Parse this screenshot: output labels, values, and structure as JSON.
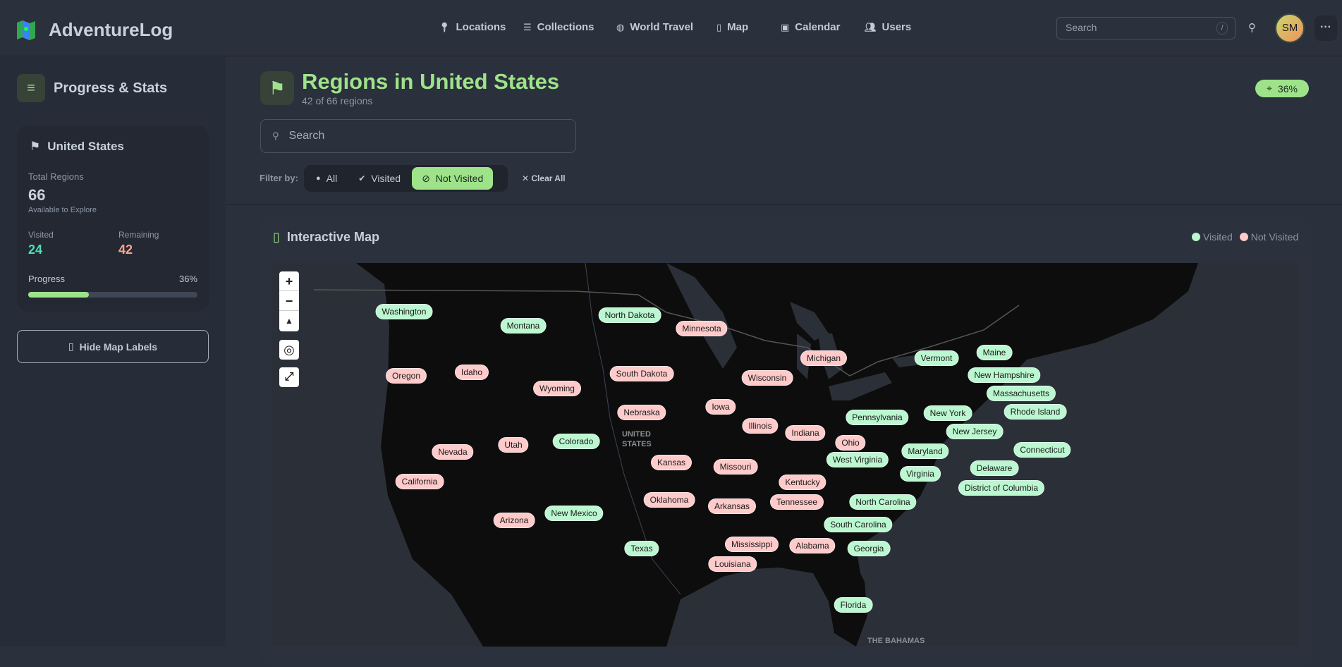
{
  "app": {
    "name": "AdventureLog"
  },
  "nav": [
    {
      "label": "Locations",
      "icon": "map-pin-icon"
    },
    {
      "label": "Collections",
      "icon": "list-icon"
    },
    {
      "label": "World Travel",
      "icon": "globe-icon"
    },
    {
      "label": "Map",
      "icon": "map-icon"
    },
    {
      "label": "Calendar",
      "icon": "calendar-icon"
    },
    {
      "label": "Users",
      "icon": "users-icon"
    }
  ],
  "header": {
    "search_placeholder": "Search",
    "search_shortcut": "/",
    "avatar_initials": "SM"
  },
  "sidebar": {
    "title": "Progress & Stats",
    "country": "United States",
    "total_label": "Total Regions",
    "total": "66",
    "total_sub": "Available to Explore",
    "visited_label": "Visited",
    "visited": "24",
    "remaining_label": "Remaining",
    "remaining": "42",
    "progress_label": "Progress",
    "progress_text": "36%",
    "progress": 0.36,
    "hide_labels": "Hide Map Labels"
  },
  "main": {
    "title": "Regions in United States",
    "subtitle": "42 of 66 regions",
    "badge": "36%",
    "search_placeholder": "Search",
    "filter_label": "Filter by:",
    "filters": [
      "All",
      "Visited",
      "Not Visited"
    ],
    "active_filter": "Not Visited",
    "clear_all": "Clear All"
  },
  "map": {
    "title": "Interactive Map",
    "legend_visited": "Visited",
    "legend_not_visited": "Not Visited",
    "country_label": "UNITED STATES",
    "bahamas_label": "THE BAHAMAS",
    "colors": {
      "visited": "#bbf7d0",
      "not_visited": "#fecaca"
    },
    "regions": [
      {
        "name": "Washington",
        "visited": true
      },
      {
        "name": "Montana",
        "visited": true
      },
      {
        "name": "North Dakota",
        "visited": true
      },
      {
        "name": "Minnesota",
        "visited": false
      },
      {
        "name": "Oregon",
        "visited": false
      },
      {
        "name": "Idaho",
        "visited": false
      },
      {
        "name": "Wyoming",
        "visited": false
      },
      {
        "name": "South Dakota",
        "visited": false
      },
      {
        "name": "Wisconsin",
        "visited": false
      },
      {
        "name": "Michigan",
        "visited": false
      },
      {
        "name": "Iowa",
        "visited": false
      },
      {
        "name": "Nebraska",
        "visited": false
      },
      {
        "name": "Illinois",
        "visited": false
      },
      {
        "name": "Indiana",
        "visited": false
      },
      {
        "name": "Ohio",
        "visited": false
      },
      {
        "name": "Nevada",
        "visited": false
      },
      {
        "name": "Utah",
        "visited": false
      },
      {
        "name": "Colorado",
        "visited": true
      },
      {
        "name": "Kansas",
        "visited": false
      },
      {
        "name": "Missouri",
        "visited": false
      },
      {
        "name": "Kentucky",
        "visited": false
      },
      {
        "name": "California",
        "visited": false
      },
      {
        "name": "Oklahoma",
        "visited": false
      },
      {
        "name": "Arkansas",
        "visited": false
      },
      {
        "name": "Tennessee",
        "visited": false
      },
      {
        "name": "Arizona",
        "visited": false
      },
      {
        "name": "New Mexico",
        "visited": true
      },
      {
        "name": "Texas",
        "visited": true
      },
      {
        "name": "Alabama",
        "visited": false
      },
      {
        "name": "Mississippi",
        "visited": false
      },
      {
        "name": "Louisiana",
        "visited": false
      },
      {
        "name": "Georgia",
        "visited": true
      },
      {
        "name": "South Carolina",
        "visited": true
      },
      {
        "name": "North Carolina",
        "visited": true
      },
      {
        "name": "Florida",
        "visited": true
      },
      {
        "name": "Virginia",
        "visited": true
      },
      {
        "name": "Delaware",
        "visited": true
      },
      {
        "name": "District of Columbia",
        "visited": true
      },
      {
        "name": "Maryland",
        "visited": true
      },
      {
        "name": "West Virginia",
        "visited": true
      },
      {
        "name": "New Jersey",
        "visited": true
      },
      {
        "name": "Connecticut",
        "visited": true
      },
      {
        "name": "New York",
        "visited": true
      },
      {
        "name": "Pennsylvania",
        "visited": true
      },
      {
        "name": "Rhode Island",
        "visited": true
      },
      {
        "name": "Massachusetts",
        "visited": true
      },
      {
        "name": "New Hampshire",
        "visited": true
      },
      {
        "name": "Vermont",
        "visited": true
      },
      {
        "name": "Maine",
        "visited": true
      }
    ]
  }
}
